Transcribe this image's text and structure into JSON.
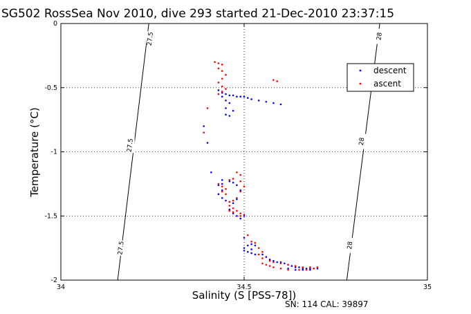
{
  "chart_data": {
    "type": "scatter",
    "title": "SG502 RossSea Nov 2010, dive 293 started 21-Dec-2010 23:37:15",
    "xlabel": "Salinity (S [PSS-78])",
    "ylabel": "Temperature (°C)",
    "xlim": [
      34,
      35
    ],
    "ylim": [
      -2,
      0
    ],
    "xticks": [
      34,
      34.5,
      35
    ],
    "xtick_labels": [
      "34",
      "34.5",
      "35"
    ],
    "yticks": [
      0,
      -0.5,
      -1,
      -1.5,
      -2
    ],
    "ytick_labels": [
      "0",
      "-0.5",
      "-1",
      "-1.5",
      "-2"
    ],
    "grid": true,
    "grid_style": "dotted",
    "legend_position": "top-right",
    "footnote": "SN: 114  CAL: 39897",
    "density_contours": [
      {
        "label": "27.5",
        "x_at_top": 34.24,
        "x_at_bottom": 34.155,
        "label_positions": [
          {
            "x": 34.245,
            "y": -0.12
          },
          {
            "x": 34.19,
            "y": -0.95
          },
          {
            "x": 34.165,
            "y": -1.75
          }
        ]
      },
      {
        "label": "28",
        "x_at_top": 34.87,
        "x_at_bottom": 34.78,
        "label_positions": [
          {
            "x": 34.87,
            "y": -0.1
          },
          {
            "x": 34.822,
            "y": -0.92
          },
          {
            "x": 34.79,
            "y": -1.73
          }
        ]
      }
    ],
    "series": [
      {
        "name": "descent",
        "color": "#0000ff",
        "points": [
          [
            34.43,
            -0.52
          ],
          [
            34.44,
            -0.54
          ],
          [
            34.45,
            -0.55
          ],
          [
            34.46,
            -0.56
          ],
          [
            34.47,
            -0.56
          ],
          [
            34.48,
            -0.57
          ],
          [
            34.49,
            -0.57
          ],
          [
            34.5,
            -0.57
          ],
          [
            34.51,
            -0.58
          ],
          [
            34.52,
            -0.59
          ],
          [
            34.54,
            -0.6
          ],
          [
            34.56,
            -0.61
          ],
          [
            34.58,
            -0.62
          ],
          [
            34.6,
            -0.63
          ],
          [
            34.44,
            -0.57
          ],
          [
            34.45,
            -0.6
          ],
          [
            34.46,
            -0.62
          ],
          [
            34.45,
            -0.66
          ],
          [
            34.47,
            -0.68
          ],
          [
            34.46,
            -0.72
          ],
          [
            34.45,
            -0.71
          ],
          [
            34.39,
            -0.8
          ],
          [
            34.4,
            -0.93
          ],
          [
            34.41,
            -1.16
          ],
          [
            34.44,
            -1.22
          ],
          [
            34.43,
            -1.26
          ],
          [
            34.44,
            -1.3
          ],
          [
            34.43,
            -1.33
          ],
          [
            34.44,
            -1.36
          ],
          [
            34.45,
            -1.38
          ],
          [
            34.44,
            -1.25
          ],
          [
            34.46,
            -1.23
          ],
          [
            34.47,
            -1.24
          ],
          [
            34.48,
            -1.26
          ],
          [
            34.49,
            -1.3
          ],
          [
            34.48,
            -1.37
          ],
          [
            34.47,
            -1.4
          ],
          [
            34.46,
            -1.45
          ],
          [
            34.47,
            -1.48
          ],
          [
            34.48,
            -1.5
          ],
          [
            34.49,
            -1.52
          ],
          [
            34.5,
            -1.5
          ],
          [
            34.5,
            -1.67
          ],
          [
            34.51,
            -1.73
          ],
          [
            34.5,
            -1.75
          ],
          [
            34.5,
            -1.77
          ],
          [
            34.51,
            -1.78
          ],
          [
            34.52,
            -1.79
          ],
          [
            34.53,
            -1.8
          ],
          [
            34.52,
            -1.76
          ],
          [
            34.53,
            -1.73
          ],
          [
            34.52,
            -1.72
          ],
          [
            34.55,
            -1.8
          ],
          [
            34.56,
            -1.82
          ],
          [
            34.57,
            -1.84
          ],
          [
            34.58,
            -1.85
          ],
          [
            34.59,
            -1.86
          ],
          [
            34.6,
            -1.86
          ],
          [
            34.61,
            -1.87
          ],
          [
            34.62,
            -1.88
          ],
          [
            34.63,
            -1.89
          ],
          [
            34.64,
            -1.9
          ],
          [
            34.65,
            -1.9
          ],
          [
            34.66,
            -1.91
          ],
          [
            34.67,
            -1.91
          ],
          [
            34.68,
            -1.91
          ],
          [
            34.69,
            -1.91
          ],
          [
            34.7,
            -1.91
          ],
          [
            34.62,
            -1.91
          ],
          [
            34.64,
            -1.92
          ],
          [
            34.66,
            -1.92
          ],
          [
            34.68,
            -1.92
          ]
        ]
      },
      {
        "name": "ascent",
        "color": "#ff0000",
        "points": [
          [
            34.42,
            -0.3
          ],
          [
            34.43,
            -0.31
          ],
          [
            34.44,
            -0.32
          ],
          [
            34.43,
            -0.35
          ],
          [
            34.44,
            -0.37
          ],
          [
            34.45,
            -0.4
          ],
          [
            34.44,
            -0.43
          ],
          [
            34.43,
            -0.46
          ],
          [
            34.44,
            -0.49
          ],
          [
            34.45,
            -0.51
          ],
          [
            34.44,
            -0.53
          ],
          [
            34.43,
            -0.55
          ],
          [
            34.58,
            -0.44
          ],
          [
            34.59,
            -0.45
          ],
          [
            34.4,
            -0.66
          ],
          [
            34.39,
            -0.85
          ],
          [
            34.44,
            -1.27
          ],
          [
            34.45,
            -1.29
          ],
          [
            34.44,
            -1.31
          ],
          [
            34.45,
            -1.33
          ],
          [
            34.43,
            -1.25
          ],
          [
            34.46,
            -1.22
          ],
          [
            34.47,
            -1.21
          ],
          [
            34.48,
            -1.16
          ],
          [
            34.49,
            -1.18
          ],
          [
            34.49,
            -1.23
          ],
          [
            34.5,
            -1.27
          ],
          [
            34.49,
            -1.31
          ],
          [
            34.48,
            -1.36
          ],
          [
            34.47,
            -1.38
          ],
          [
            34.46,
            -1.39
          ],
          [
            34.46,
            -1.42
          ],
          [
            34.47,
            -1.44
          ],
          [
            34.48,
            -1.46
          ],
          [
            34.49,
            -1.48
          ],
          [
            34.5,
            -1.49
          ],
          [
            34.49,
            -1.5
          ],
          [
            34.47,
            -1.47
          ],
          [
            34.46,
            -1.46
          ],
          [
            34.51,
            -1.65
          ],
          [
            34.52,
            -1.7
          ],
          [
            34.53,
            -1.71
          ],
          [
            34.54,
            -1.75
          ],
          [
            34.55,
            -1.78
          ],
          [
            34.54,
            -1.8
          ],
          [
            34.55,
            -1.83
          ],
          [
            34.57,
            -1.85
          ],
          [
            34.58,
            -1.86
          ],
          [
            34.6,
            -1.87
          ],
          [
            34.62,
            -1.88
          ],
          [
            34.64,
            -1.89
          ],
          [
            34.66,
            -1.9
          ],
          [
            34.68,
            -1.9
          ],
          [
            34.7,
            -1.9
          ],
          [
            34.6,
            -1.91
          ],
          [
            34.62,
            -1.92
          ],
          [
            34.65,
            -1.92
          ],
          [
            34.67,
            -1.92
          ],
          [
            34.69,
            -1.91
          ],
          [
            34.57,
            -1.89
          ],
          [
            34.58,
            -1.9
          ],
          [
            34.56,
            -1.88
          ],
          [
            34.55,
            -1.87
          ]
        ]
      }
    ]
  }
}
